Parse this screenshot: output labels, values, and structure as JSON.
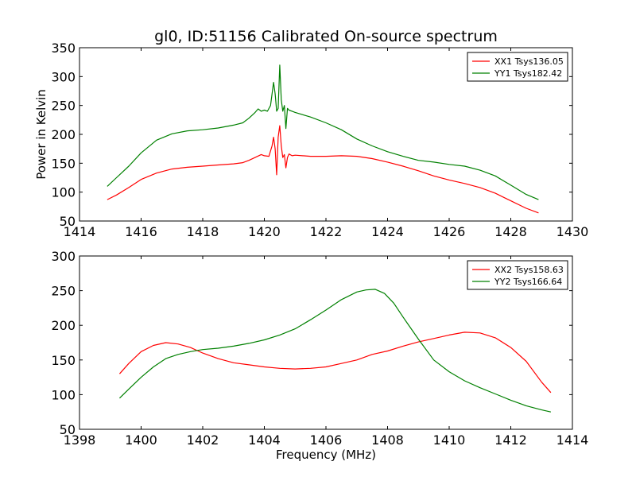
{
  "title": "gl0, ID:51156 Calibrated On-source spectrum",
  "colors": {
    "red": "#ff0000",
    "green": "#008000"
  },
  "chart_data": [
    {
      "type": "line",
      "title": "gl0, ID:51156 Calibrated On-source spectrum",
      "xlabel": "",
      "ylabel": "Power in Kelvin",
      "xlim": [
        1414,
        1430
      ],
      "ylim": [
        50,
        350
      ],
      "xticks": [
        "1414",
        "1416",
        "1418",
        "1420",
        "1422",
        "1424",
        "1426",
        "1428",
        "1430"
      ],
      "yticks": [
        "50",
        "100",
        "150",
        "200",
        "250",
        "300",
        "350"
      ],
      "legend_position": "top-right",
      "series": [
        {
          "name": "XX1 Tsys136.05",
          "color": "#ff0000",
          "x": [
            1414.9,
            1415.2,
            1415.6,
            1416.0,
            1416.5,
            1417.0,
            1417.5,
            1418.0,
            1418.5,
            1419.0,
            1419.3,
            1419.5,
            1419.7,
            1419.9,
            1420.0,
            1420.15,
            1420.25,
            1420.3,
            1420.35,
            1420.4,
            1420.45,
            1420.5,
            1420.55,
            1420.6,
            1420.65,
            1420.7,
            1420.75,
            1420.8,
            1420.9,
            1421.0,
            1421.5,
            1422.0,
            1422.5,
            1423.0,
            1423.5,
            1424.0,
            1424.5,
            1425.0,
            1425.5,
            1426.0,
            1426.5,
            1427.0,
            1427.5,
            1428.0,
            1428.5,
            1428.9
          ],
          "values": [
            87,
            95,
            108,
            122,
            133,
            140,
            143,
            145,
            147,
            149,
            151,
            155,
            160,
            165,
            163,
            162,
            180,
            195,
            175,
            130,
            195,
            215,
            180,
            160,
            165,
            142,
            160,
            166,
            163,
            164,
            162,
            162,
            163,
            162,
            158,
            152,
            145,
            137,
            128,
            121,
            115,
            108,
            98,
            85,
            72,
            64
          ]
        },
        {
          "name": "YY1 Tsys182.42",
          "color": "#008000",
          "x": [
            1414.9,
            1415.2,
            1415.6,
            1416.0,
            1416.5,
            1417.0,
            1417.5,
            1418.0,
            1418.5,
            1419.0,
            1419.3,
            1419.5,
            1419.7,
            1419.8,
            1419.9,
            1420.0,
            1420.1,
            1420.2,
            1420.3,
            1420.35,
            1420.4,
            1420.45,
            1420.5,
            1420.55,
            1420.6,
            1420.65,
            1420.7,
            1420.75,
            1420.8,
            1420.9,
            1421.0,
            1421.5,
            1422.0,
            1422.5,
            1423.0,
            1423.5,
            1424.0,
            1424.5,
            1425.0,
            1425.5,
            1426.0,
            1426.5,
            1427.0,
            1427.5,
            1428.0,
            1428.5,
            1428.9
          ],
          "values": [
            110,
            125,
            145,
            168,
            190,
            201,
            206,
            208,
            211,
            216,
            220,
            228,
            238,
            244,
            240,
            242,
            240,
            250,
            290,
            270,
            240,
            245,
            320,
            260,
            240,
            250,
            210,
            245,
            242,
            240,
            238,
            230,
            220,
            208,
            192,
            180,
            170,
            162,
            155,
            152,
            148,
            145,
            138,
            128,
            112,
            96,
            87
          ]
        }
      ]
    },
    {
      "type": "line",
      "title": "",
      "xlabel": "Frequency (MHz)",
      "ylabel": "",
      "xlim": [
        1398,
        1414
      ],
      "ylim": [
        50,
        300
      ],
      "xticks": [
        "1398",
        "1400",
        "1402",
        "1404",
        "1406",
        "1408",
        "1410",
        "1412",
        "1414"
      ],
      "yticks": [
        "50",
        "100",
        "150",
        "200",
        "250",
        "300"
      ],
      "legend_position": "top-right",
      "series": [
        {
          "name": "XX2 Tsys158.63",
          "color": "#ff0000",
          "x": [
            1399.3,
            1399.6,
            1400.0,
            1400.4,
            1400.8,
            1401.2,
            1401.6,
            1402.0,
            1402.5,
            1403.0,
            1403.5,
            1404.0,
            1404.5,
            1405.0,
            1405.5,
            1406.0,
            1406.5,
            1407.0,
            1407.5,
            1408.0,
            1408.5,
            1409.0,
            1409.5,
            1410.0,
            1410.5,
            1411.0,
            1411.5,
            1412.0,
            1412.5,
            1413.0,
            1413.3
          ],
          "values": [
            130,
            145,
            162,
            171,
            175,
            173,
            168,
            160,
            152,
            146,
            143,
            140,
            138,
            137,
            138,
            140,
            145,
            150,
            158,
            163,
            170,
            176,
            181,
            186,
            190,
            189,
            182,
            168,
            148,
            118,
            103
          ]
        },
        {
          "name": "YY2 Tsys166.64",
          "color": "#008000",
          "x": [
            1399.3,
            1399.6,
            1400.0,
            1400.4,
            1400.8,
            1401.2,
            1401.6,
            1402.0,
            1402.5,
            1403.0,
            1403.5,
            1404.0,
            1404.5,
            1405.0,
            1405.5,
            1406.0,
            1406.5,
            1407.0,
            1407.3,
            1407.6,
            1407.9,
            1408.2,
            1408.5,
            1409.0,
            1409.5,
            1410.0,
            1410.5,
            1411.0,
            1411.5,
            1412.0,
            1412.5,
            1413.0,
            1413.3
          ],
          "values": [
            95,
            108,
            125,
            140,
            152,
            158,
            162,
            165,
            167,
            170,
            174,
            179,
            186,
            195,
            208,
            222,
            237,
            248,
            251,
            252,
            246,
            232,
            212,
            180,
            150,
            133,
            120,
            110,
            101,
            92,
            84,
            78,
            75
          ]
        }
      ]
    }
  ]
}
